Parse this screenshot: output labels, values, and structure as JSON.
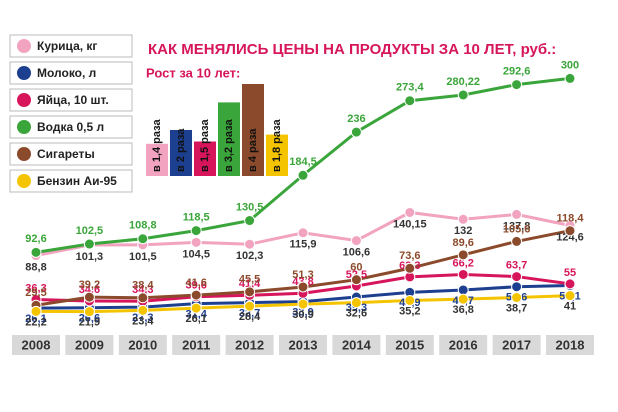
{
  "chart_data": [
    {
      "type": "line",
      "title": "КАК МЕНЯЛИСЬ ЦЕНЫ НА ПРОДУКТЫ ЗА 10 ЛЕТ, руб.:",
      "categories": [
        "2008",
        "2009",
        "2010",
        "2011",
        "2012",
        "2013",
        "2014",
        "2015",
        "2016",
        "2017",
        "2018"
      ],
      "ylim": [
        0,
        310
      ],
      "series": [
        {
          "name": "Курица, кг",
          "color": "#f2a3bf",
          "values": [
            88.8,
            101.3,
            101.5,
            104.5,
            102.3,
            115.9,
            106.6,
            140.15,
            132,
            137.8,
            124.6
          ],
          "value_labels": [
            "88,8",
            "101,3",
            "101,5",
            "104,5",
            "102,3",
            "115,9",
            "106,6",
            "140,15",
            "132",
            "137,8",
            "124,6"
          ]
        },
        {
          "name": "Молоко, л",
          "color": "#1d3f8f",
          "values": [
            26.1,
            26.6,
            27.3,
            31.4,
            32.7,
            33.9,
            39.3,
            44.9,
            47.7,
            51.6,
            53.1
          ],
          "value_labels": [
            "26,1",
            "26,6",
            "27,3",
            "31,4",
            "32,7",
            "33,9",
            "39,3",
            "44,9",
            "47,7",
            "51,6",
            "53,1"
          ]
        },
        {
          "name": "Яйца, 10 шт.",
          "color": "#d6155b",
          "values": [
            36.3,
            34.6,
            34.3,
            39.6,
            41.4,
            43.8,
            52.5,
            63.3,
            66.2,
            63.7,
            55
          ],
          "value_labels": [
            "36,3",
            "34,6",
            "34,3",
            "39,6",
            "41,4",
            "43,8",
            "52,5",
            "63,3",
            "66,2",
            "63,7",
            "55"
          ]
        },
        {
          "name": "Водка 0,5 л",
          "color": "#3aa53a",
          "values": [
            92.6,
            102.5,
            108.8,
            118.5,
            130.5,
            184.5,
            236,
            273.4,
            280.22,
            292.6,
            300
          ],
          "value_labels": [
            "92,6",
            "102,5",
            "108,8",
            "118,5",
            "130,5",
            "184,5",
            "236",
            "273,4",
            "280,22",
            "292,6",
            "300"
          ]
        },
        {
          "name": "Сигареты",
          "color": "#8b4a2b",
          "values": [
            29.5,
            39.2,
            38.4,
            41.6,
            45.5,
            51.3,
            60,
            73.6,
            89.6,
            105.6,
            118.4
          ],
          "value_labels": [
            "29,5",
            "39,2",
            "38,4",
            "41,6",
            "45,5",
            "51,3",
            "60",
            "73,6",
            "89,6",
            "105,6",
            "118,4"
          ]
        },
        {
          "name": "Бензин Аи-95",
          "color": "#f5c400",
          "values": [
            22.2,
            21.9,
            23.4,
            26.1,
            28.4,
            30.9,
            32.6,
            35.2,
            36.8,
            38.7,
            41
          ],
          "value_labels": [
            "22,2",
            "21,9",
            "23,4",
            "26,1",
            "28,4",
            "30,9",
            "32,6",
            "35,2",
            "36,8",
            "38,7",
            "41"
          ]
        }
      ]
    },
    {
      "type": "bar",
      "title": "Рост за 10 лет:",
      "values": [
        1.4,
        2,
        1.5,
        3.2,
        4,
        1.8
      ],
      "value_labels": [
        "в 1,4 раза",
        "в 2 раза",
        "в 1,5 раза",
        "в 3,2 раза",
        "в 4 раза",
        "в 1,8 раза"
      ],
      "colors": [
        "#f2a3bf",
        "#1d3f8f",
        "#d6155b",
        "#3aa53a",
        "#8b4a2b",
        "#f5c400"
      ]
    }
  ]
}
